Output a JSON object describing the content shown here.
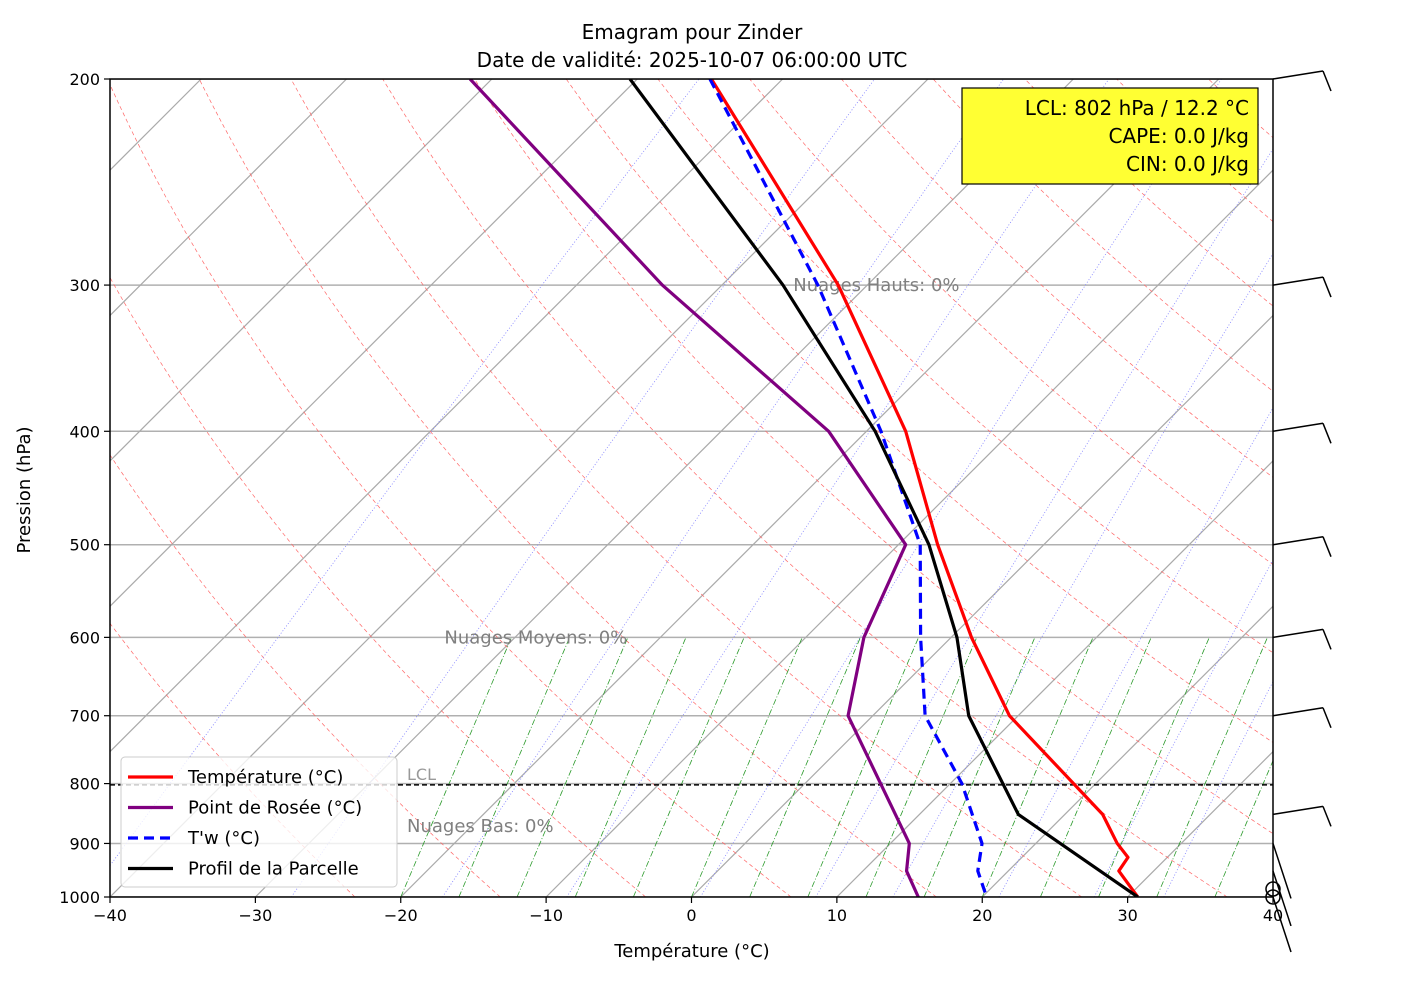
{
  "chart_data": {
    "type": "line",
    "title": "Emagram pour Zinder",
    "subtitle": "Date de validité: 2025-10-07 06:00:00 UTC",
    "xlabel": "Température (°C)",
    "ylabel": "Pression (hPa)",
    "xlim": [
      -40,
      40
    ],
    "ylim": [
      1000,
      200
    ],
    "y_scale": "log",
    "x_ticks": [
      -40,
      -30,
      -20,
      -10,
      0,
      10,
      20,
      30,
      40
    ],
    "x_tick_labels": [
      "−40",
      "−30",
      "−20",
      "−10",
      "0",
      "10",
      "20",
      "30",
      "40"
    ],
    "y_ticks": [
      200,
      300,
      400,
      500,
      600,
      700,
      800,
      900,
      1000
    ],
    "y_tick_labels": [
      "200",
      "300",
      "400",
      "500",
      "600",
      "700",
      "800",
      "900",
      "1000"
    ],
    "skew_note": "temperatures are real values; drawn on skewed isotherms",
    "series": [
      {
        "name": "Température (°C)",
        "color": "#ff0000",
        "style": "solid",
        "p": [
          200,
          300,
          400,
          500,
          600,
          700,
          850,
          900,
          925,
          950,
          1000
        ],
        "t": [
          -54.9,
          -32.0,
          -17.3,
          -7.3,
          1.4,
          9.4,
          22.6,
          25.6,
          27.3,
          27.6,
          30.7
        ]
      },
      {
        "name": "Point de Rosée (°C)",
        "color": "#800080",
        "style": "solid",
        "p": [
          200,
          300,
          400,
          500,
          600,
          700,
          900,
          950,
          1000
        ],
        "t": [
          -71.5,
          -44.1,
          -22.6,
          -9.5,
          -6.0,
          -1.7,
          11.3,
          13.0,
          15.6
        ]
      },
      {
        "name": "T'w (°C)",
        "color": "#0000ff",
        "style": "dashed",
        "p": [
          200,
          300,
          400,
          500,
          600,
          700,
          800,
          900,
          950,
          1000
        ],
        "t": [
          -55.0,
          -33.4,
          -19.0,
          -8.5,
          -2.1,
          3.6,
          10.8,
          16.3,
          17.9,
          20.3
        ]
      },
      {
        "name": "Profil de la Parcelle",
        "color": "#000000",
        "style": "solid",
        "p": [
          200,
          300,
          400,
          500,
          600,
          700,
          850,
          1000
        ],
        "t": [
          -60.5,
          -35.8,
          -19.4,
          -7.9,
          0.4,
          6.6,
          16.8,
          30.7
        ]
      }
    ],
    "lcl_pressure": 802,
    "lcl_line_label": "LCL",
    "info_box": [
      "LCL: 802 hPa / 12.2 °C",
      "CAPE: 0.0 J/kg",
      "CIN: 0.0 J/kg"
    ],
    "annotations": [
      {
        "text": "Nuages Hauts: 0%",
        "p": 300,
        "t_axis": 7
      },
      {
        "text": "Nuages Moyens: 0%",
        "p": 600,
        "t_axis": -17
      },
      {
        "text": "Nuages Bas: 0%",
        "p": 870,
        "t_axis": -33
      }
    ],
    "wind_barb_levels": [
      200,
      300,
      400,
      500,
      600,
      700,
      850,
      900,
      950,
      1000
    ],
    "legend_position": "lower-left"
  }
}
